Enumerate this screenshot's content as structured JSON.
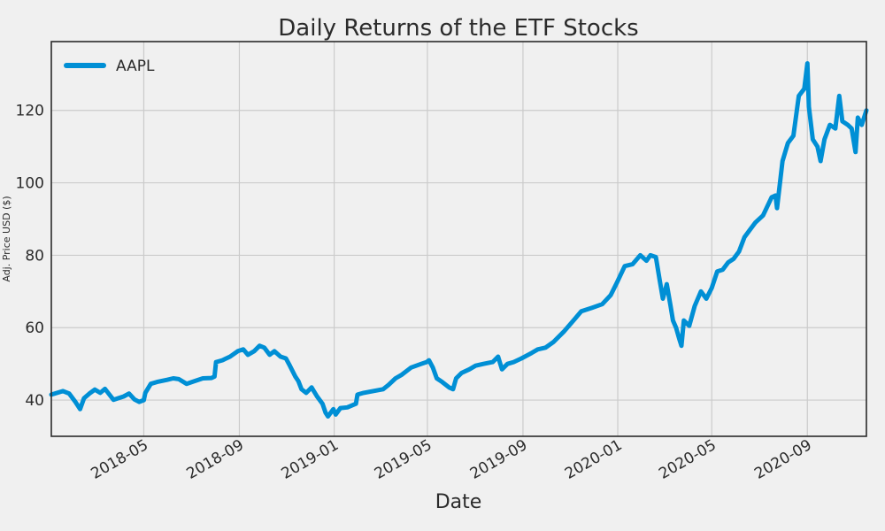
{
  "chart_data": {
    "type": "line",
    "title": "Daily Returns of the ETF Stocks",
    "xlabel": "Date",
    "ylabel": "Adj. Price USD ($)",
    "xlim": [
      "2018-01-02",
      "2020-11-16"
    ],
    "ylim": [
      30,
      139
    ],
    "x_ticks": [
      "2018-05",
      "2018-09",
      "2019-01",
      "2019-05",
      "2019-09",
      "2020-01",
      "2020-05",
      "2020-09"
    ],
    "y_ticks": [
      40,
      60,
      80,
      100,
      120
    ],
    "grid": true,
    "legend_position": "top-left",
    "colors": {
      "series": "#008fd5",
      "grid": "#cbcbcb",
      "background": "#f0f0f0",
      "plot_border": "#2b2b2b"
    },
    "series": [
      {
        "name": "AAPL",
        "x": [
          "2018-01-02",
          "2018-01-17",
          "2018-01-25",
          "2018-02-02",
          "2018-02-08",
          "2018-02-13",
          "2018-02-20",
          "2018-02-27",
          "2018-03-06",
          "2018-03-12",
          "2018-03-16",
          "2018-03-23",
          "2018-03-29",
          "2018-04-05",
          "2018-04-12",
          "2018-04-19",
          "2018-04-25",
          "2018-05-01",
          "2018-05-03",
          "2018-05-10",
          "2018-05-18",
          "2018-05-31",
          "2018-06-08",
          "2018-06-15",
          "2018-06-25",
          "2018-07-05",
          "2018-07-16",
          "2018-07-27",
          "2018-07-31",
          "2018-08-02",
          "2018-08-10",
          "2018-08-20",
          "2018-08-30",
          "2018-09-06",
          "2018-09-12",
          "2018-09-20",
          "2018-09-27",
          "2018-10-03",
          "2018-10-10",
          "2018-10-16",
          "2018-10-24",
          "2018-10-31",
          "2018-11-05",
          "2018-11-12",
          "2018-11-16",
          "2018-11-20",
          "2018-11-26",
          "2018-12-03",
          "2018-12-10",
          "2018-12-17",
          "2018-12-21",
          "2018-12-24",
          "2018-12-31",
          "2019-01-03",
          "2019-01-09",
          "2019-01-18",
          "2019-01-29",
          "2019-01-31",
          "2019-02-08",
          "2019-02-20",
          "2019-03-05",
          "2019-03-12",
          "2019-03-21",
          "2019-03-29",
          "2019-04-10",
          "2019-04-23",
          "2019-04-30",
          "2019-05-03",
          "2019-05-08",
          "2019-05-13",
          "2019-05-20",
          "2019-05-29",
          "2019-06-03",
          "2019-06-07",
          "2019-06-14",
          "2019-06-24",
          "2019-07-02",
          "2019-07-12",
          "2019-07-24",
          "2019-07-31",
          "2019-08-05",
          "2019-08-12",
          "2019-08-20",
          "2019-08-30",
          "2019-09-12",
          "2019-09-20",
          "2019-09-30",
          "2019-10-10",
          "2019-10-24",
          "2019-11-05",
          "2019-11-15",
          "2019-11-29",
          "2019-12-12",
          "2019-12-23",
          "2019-12-31",
          "2020-01-10",
          "2020-01-20",
          "2020-01-30",
          "2020-02-07",
          "2020-02-12",
          "2020-02-19",
          "2020-02-24",
          "2020-02-28",
          "2020-03-04",
          "2020-03-09",
          "2020-03-12",
          "2020-03-16",
          "2020-03-20",
          "2020-03-23",
          "2020-03-26",
          "2020-04-02",
          "2020-04-09",
          "2020-04-17",
          "2020-04-24",
          "2020-05-01",
          "2020-05-08",
          "2020-05-15",
          "2020-05-22",
          "2020-05-29",
          "2020-06-05",
          "2020-06-12",
          "2020-06-19",
          "2020-06-26",
          "2020-07-06",
          "2020-07-17",
          "2020-07-22",
          "2020-07-24",
          "2020-07-31",
          "2020-08-07",
          "2020-08-14",
          "2020-08-21",
          "2020-08-28",
          "2020-09-01",
          "2020-09-03",
          "2020-09-08",
          "2020-09-14",
          "2020-09-18",
          "2020-09-23",
          "2020-09-30",
          "2020-10-07",
          "2020-10-12",
          "2020-10-16",
          "2020-10-23",
          "2020-10-28",
          "2020-11-02",
          "2020-11-05",
          "2020-11-10",
          "2020-11-16"
        ],
        "values": [
          41.5,
          42.5,
          41.8,
          39.5,
          37.5,
          40.5,
          41.8,
          42.9,
          42.0,
          43.1,
          42.0,
          40.1,
          40.5,
          41.0,
          41.8,
          40.2,
          39.5,
          40.0,
          42.0,
          44.5,
          45.0,
          45.6,
          46.0,
          45.8,
          44.5,
          45.2,
          46.0,
          46.1,
          46.5,
          50.5,
          51.0,
          52.0,
          53.5,
          54.0,
          52.5,
          53.5,
          55.0,
          54.5,
          52.5,
          53.5,
          52.0,
          51.5,
          49.5,
          46.5,
          45.2,
          43.0,
          42.0,
          43.5,
          41.0,
          39.0,
          36.5,
          35.5,
          37.5,
          36.0,
          37.8,
          38.0,
          39.0,
          41.5,
          42.0,
          42.5,
          43.0,
          44.2,
          46.0,
          47.0,
          49.0,
          50.0,
          50.5,
          51.0,
          49.0,
          46.0,
          45.0,
          43.5,
          43.0,
          46.0,
          47.5,
          48.5,
          49.5,
          50.0,
          50.5,
          52.0,
          48.5,
          50.0,
          50.5,
          51.5,
          53.0,
          54.0,
          54.5,
          56.0,
          59.0,
          62.0,
          64.5,
          65.5,
          66.5,
          69.0,
          72.5,
          77.0,
          77.5,
          80.0,
          78.5,
          80.0,
          79.5,
          73.0,
          68.0,
          72.0,
          66.0,
          62.0,
          60.0,
          57.0,
          55.0,
          62.0,
          60.5,
          66.0,
          70.0,
          68.0,
          71.0,
          75.5,
          76.0,
          78.0,
          79.0,
          81.0,
          85.0,
          87.0,
          89.0,
          91.0,
          96.0,
          96.5,
          93.0,
          106.0,
          111.0,
          113.0,
          124.0,
          126.0,
          133.0,
          121.0,
          112.0,
          110.0,
          106.0,
          112.0,
          116.0,
          115.0,
          124.0,
          117.0,
          116.0,
          115.0,
          108.5,
          118.0,
          116.0,
          120.0
        ]
      }
    ]
  }
}
